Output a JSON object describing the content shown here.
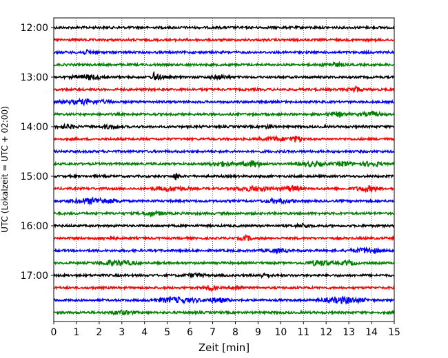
{
  "chart_data": {
    "type": "line",
    "xlabel": "Zeit  [min]",
    "ylabel": "UTC (Lokalzeit = UTC + 02:00)",
    "xlim": [
      0,
      15
    ],
    "x_ticks": [
      0,
      1,
      2,
      3,
      4,
      5,
      6,
      7,
      8,
      9,
      10,
      11,
      12,
      13,
      14,
      15
    ],
    "y_tick_labels": [
      "12:00",
      "13:00",
      "14:00",
      "15:00",
      "16:00",
      "17:00"
    ],
    "grid": "vertical dotted lines at every minute",
    "start_time": "12:00",
    "end_time": "18:00",
    "trace_interval_min": 15,
    "colors_cycle": [
      "#000000",
      "#ff0000",
      "#0000ff",
      "#008000"
    ],
    "traces": [
      {
        "start": "12:00",
        "color": "#000000",
        "events": []
      },
      {
        "start": "12:15",
        "color": "#ff0000",
        "events": []
      },
      {
        "start": "12:30",
        "color": "#0000ff",
        "events": [
          [
            1.5,
            0.6,
            1.4
          ]
        ]
      },
      {
        "start": "12:45",
        "color": "#008000",
        "events": [
          [
            12.3,
            0.6,
            1.5
          ]
        ]
      },
      {
        "start": "13:00",
        "color": "#000000",
        "events": [
          [
            1.6,
            1.0,
            1.8
          ],
          [
            4.45,
            0.12,
            4.5
          ],
          [
            4.6,
            0.5,
            1.6
          ],
          [
            7.3,
            0.6,
            1.4
          ]
        ]
      },
      {
        "start": "13:15",
        "color": "#ff0000",
        "events": [
          [
            13.3,
            0.4,
            2.2
          ]
        ]
      },
      {
        "start": "13:30",
        "color": "#0000ff",
        "events": [
          [
            1.4,
            1.5,
            1.7
          ]
        ]
      },
      {
        "start": "13:45",
        "color": "#008000",
        "events": [
          [
            12.5,
            0.7,
            1.6
          ],
          [
            14.0,
            0.8,
            1.5
          ]
        ]
      },
      {
        "start": "14:00",
        "color": "#000000",
        "events": [
          [
            0.6,
            0.6,
            1.5
          ],
          [
            2.5,
            0.5,
            1.6
          ],
          [
            9.5,
            0.3,
            1.5
          ]
        ]
      },
      {
        "start": "14:15",
        "color": "#ff0000",
        "events": [
          [
            10.7,
            0.4,
            2.2
          ],
          [
            9.8,
            0.9,
            1.4
          ]
        ]
      },
      {
        "start": "14:30",
        "color": "#0000ff",
        "events": []
      },
      {
        "start": "14:45",
        "color": "#008000",
        "events": [
          [
            8.8,
            0.7,
            2.3
          ],
          [
            7.4,
            0.8,
            1.6
          ],
          [
            12.8,
            0.5,
            2.0
          ],
          [
            14.0,
            0.6,
            2.0
          ],
          [
            11.4,
            1.0,
            1.6
          ]
        ]
      },
      {
        "start": "15:00",
        "color": "#000000",
        "events": [
          [
            5.4,
            0.2,
            2.6
          ]
        ]
      },
      {
        "start": "15:15",
        "color": "#ff0000",
        "events": [
          [
            10.5,
            0.6,
            2.2
          ],
          [
            8.8,
            1.2,
            1.7
          ],
          [
            5.2,
            1.0,
            1.5
          ],
          [
            13.8,
            0.8,
            2.0
          ]
        ]
      },
      {
        "start": "15:30",
        "color": "#0000ff",
        "events": [
          [
            1.8,
            1.5,
            2.2
          ],
          [
            9.9,
            0.9,
            1.6
          ]
        ]
      },
      {
        "start": "15:45",
        "color": "#008000",
        "events": [
          [
            4.3,
            0.8,
            1.5
          ]
        ]
      },
      {
        "start": "16:00",
        "color": "#000000",
        "events": [
          [
            11.0,
            0.5,
            1.4
          ]
        ]
      },
      {
        "start": "16:15",
        "color": "#ff0000",
        "events": [
          [
            8.5,
            0.4,
            1.7
          ],
          [
            2.3,
            0.6,
            1.4
          ]
        ]
      },
      {
        "start": "16:30",
        "color": "#0000ff",
        "events": [
          [
            13.8,
            1.0,
            1.9
          ],
          [
            9.8,
            0.7,
            1.5
          ]
        ]
      },
      {
        "start": "16:45",
        "color": "#008000",
        "events": [
          [
            2.8,
            1.2,
            2.0
          ],
          [
            11.7,
            0.8,
            2.0
          ],
          [
            13.0,
            0.5,
            1.6
          ]
        ]
      },
      {
        "start": "17:00",
        "color": "#000000",
        "events": [
          [
            9.3,
            0.4,
            1.6
          ],
          [
            6.2,
            0.6,
            1.4
          ]
        ]
      },
      {
        "start": "17:15",
        "color": "#ff0000",
        "events": [
          [
            8.1,
            0.3,
            2.2
          ],
          [
            6.9,
            0.4,
            1.8
          ]
        ]
      },
      {
        "start": "17:30",
        "color": "#0000ff",
        "events": [
          [
            5.4,
            1.5,
            2.0
          ],
          [
            12.8,
            1.4,
            2.3
          ],
          [
            7.2,
            0.7,
            1.8
          ]
        ]
      },
      {
        "start": "17:45",
        "color": "#008000",
        "events": [
          [
            3.0,
            0.8,
            1.4
          ]
        ]
      }
    ]
  }
}
